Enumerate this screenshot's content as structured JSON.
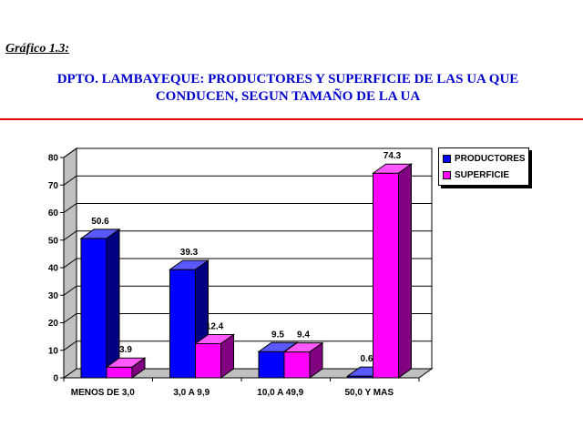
{
  "header": {
    "label": "Gráfico 1.3:",
    "title_line1": "DPTO. LAMBAYEQUE: PRODUCTORES Y SUPERFICIE DE LAS UA QUE",
    "title_line2": "CONDUCEN, SEGUN TAMAÑO DE LA UA"
  },
  "chart_data": {
    "type": "bar",
    "categories": [
      "MENOS DE 3,0",
      "3,0 A 9,9",
      "10,0 A 49,9",
      "50,0 Y MAS"
    ],
    "series": [
      {
        "name": "PRODUCTORES",
        "values": [
          50.6,
          39.3,
          9.5,
          0.6
        ],
        "color": "#0000ff"
      },
      {
        "name": "SUPERFICIE",
        "values": [
          3.9,
          12.4,
          9.4,
          74.3
        ],
        "color": "#ff00ff"
      }
    ],
    "ylim": [
      0,
      80
    ],
    "yticks": [
      0,
      10,
      20,
      30,
      40,
      50,
      60,
      70,
      80
    ],
    "grid": true,
    "legend": "top-right",
    "style": "3d-bar"
  }
}
